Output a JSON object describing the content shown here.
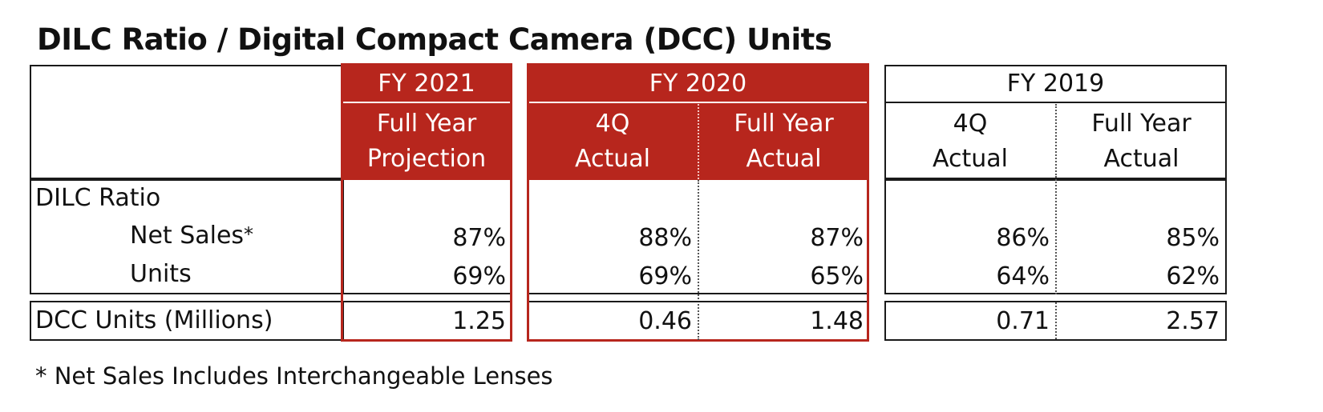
{
  "title": "DILC Ratio / Digital Compact Camera (DCC) Units",
  "footnote": "* Net Sales Includes Interchangeable Lenses",
  "colors": {
    "accent_red": "#b7261d",
    "text": "#111111",
    "border": "#1a1a1a"
  },
  "headers": {
    "fy2021": {
      "year": "FY 2021",
      "col1_line1": "Full Year",
      "col1_line2": "Projection"
    },
    "fy2020": {
      "year": "FY 2020",
      "col1_line1": "4Q",
      "col1_line2": "Actual",
      "col2_line1": "Full Year",
      "col2_line2": "Actual"
    },
    "fy2019": {
      "year": "FY 2019",
      "col1_line1": "4Q",
      "col1_line2": "Actual",
      "col2_line1": "Full Year",
      "col2_line2": "Actual"
    }
  },
  "rows": {
    "dilc_ratio_label": "DILC Ratio",
    "net_sales": {
      "label": "Net Sales",
      "marker": "*",
      "fy2021_projection": "87%",
      "fy2020_4q": "88%",
      "fy2020_full": "87%",
      "fy2019_4q": "86%",
      "fy2019_full": "85%"
    },
    "units": {
      "label": "Units",
      "fy2021_projection": "69%",
      "fy2020_4q": "69%",
      "fy2020_full": "65%",
      "fy2019_4q": "64%",
      "fy2019_full": "62%"
    },
    "dcc_units": {
      "label": "DCC Units (Millions)",
      "fy2021_projection": "1.25",
      "fy2020_4q": "0.46",
      "fy2020_full": "1.48",
      "fy2019_4q": "0.71",
      "fy2019_full": "2.57"
    }
  }
}
